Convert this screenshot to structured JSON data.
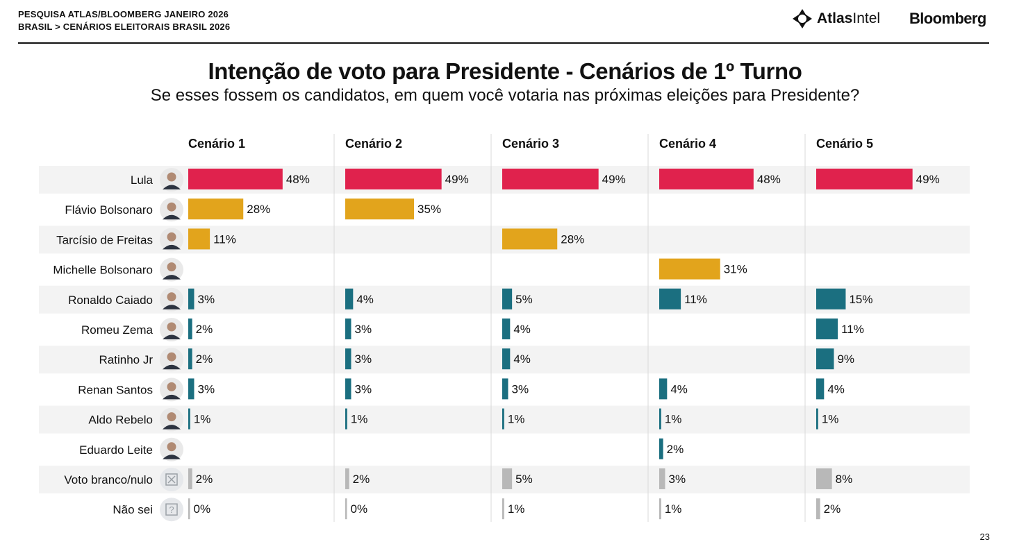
{
  "header": {
    "line1": "PESQUISA ATLAS/BLOOMBERG JANEIRO 2026",
    "line2": "BRASIL > CENÁRIOS ELEITORAIS BRASIL 2026",
    "logo_atlas_bold": "Atlas",
    "logo_atlas_light": "Intel",
    "logo_bloomberg": "Bloomberg"
  },
  "page_number": "23",
  "chart_data": {
    "type": "bar",
    "title": "Intenção de voto para Presidente - Cenários de 1º Turno",
    "subtitle": "Se esses fossem os candidatos, em quem você votaria nas próximas eleições para Presidente?",
    "unit": "%",
    "categories": [
      "Lula",
      "Flávio Bolsonaro",
      "Tarcísio de Freitas",
      "Michelle Bolsonaro",
      "Ronaldo Caiado",
      "Romeu Zema",
      "Ratinho Jr",
      "Renan Santos",
      "Aldo Rebelo",
      "Eduardo Leite",
      "Voto branco/nulo",
      "Não sei"
    ],
    "icons": [
      "person-photo",
      "person-photo",
      "person-photo",
      "person-photo",
      "person-photo",
      "person-photo",
      "person-photo",
      "person-photo",
      "person-photo",
      "person-photo",
      "ballot-x-icon",
      "question-mark-icon"
    ],
    "series": [
      {
        "name": "Cenário 1",
        "values": [
          48,
          28,
          11,
          null,
          3,
          2,
          2,
          3,
          1,
          null,
          2,
          0
        ]
      },
      {
        "name": "Cenário 2",
        "values": [
          49,
          35,
          null,
          null,
          4,
          3,
          3,
          3,
          1,
          null,
          2,
          0
        ]
      },
      {
        "name": "Cenário 3",
        "values": [
          49,
          null,
          28,
          null,
          5,
          4,
          4,
          3,
          1,
          null,
          5,
          1
        ]
      },
      {
        "name": "Cenário 4",
        "values": [
          48,
          null,
          null,
          31,
          11,
          null,
          null,
          4,
          1,
          2,
          3,
          1
        ]
      },
      {
        "name": "Cenário 5",
        "values": [
          49,
          null,
          null,
          null,
          15,
          11,
          9,
          4,
          1,
          null,
          8,
          2
        ]
      }
    ],
    "colors": {
      "leader": "#e0224d",
      "challenger": "#e2a41c",
      "other": "#1b6f80",
      "blank": "#b8b8b8",
      "row_shade": "#f3f3f3",
      "divider": "#d8d8d8"
    }
  }
}
